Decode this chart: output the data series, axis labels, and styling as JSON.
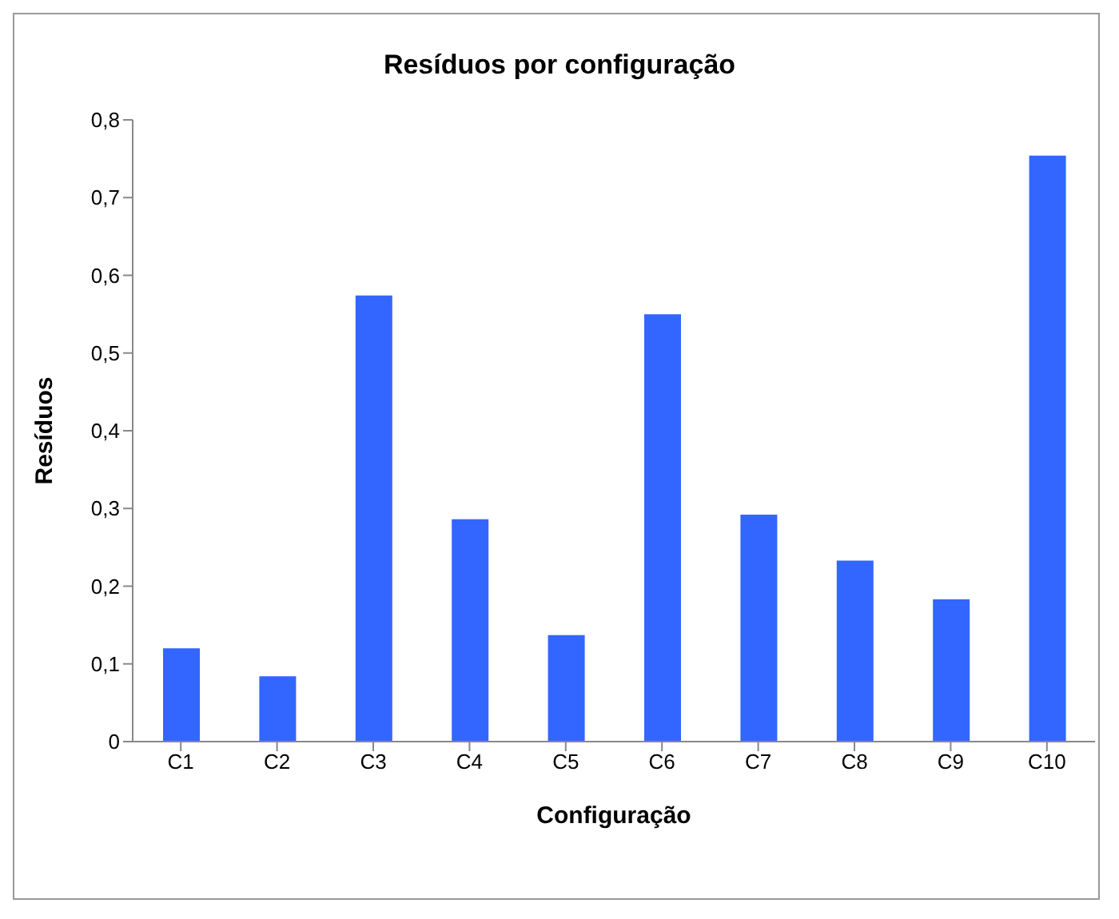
{
  "chart_data": {
    "type": "bar",
    "title": "Resíduos por configuração",
    "xlabel": "Configuração",
    "ylabel": "Resíduos",
    "categories": [
      "C1",
      "C2",
      "C3",
      "C4",
      "C5",
      "C6",
      "C7",
      "C8",
      "C9",
      "C10"
    ],
    "values": [
      0.12,
      0.084,
      0.574,
      0.286,
      0.137,
      0.55,
      0.292,
      0.233,
      0.183,
      0.754
    ],
    "color": "#3366ff",
    "ylim": [
      0,
      0.8
    ],
    "yticks": [
      0,
      {
        "value": 0.1,
        "label": "0,1"
      },
      {
        "value": 0.2,
        "label": "0,2"
      },
      {
        "value": 0.3,
        "label": "0,3"
      },
      {
        "value": 0.4,
        "label": "0,4"
      },
      {
        "value": 0.5,
        "label": "0,5"
      },
      {
        "value": 0.6,
        "label": "0,6"
      },
      {
        "value": 0.7,
        "label": "0,7"
      },
      {
        "value": 0.8,
        "label": "0,8"
      }
    ],
    "grid": false,
    "legend": false
  }
}
